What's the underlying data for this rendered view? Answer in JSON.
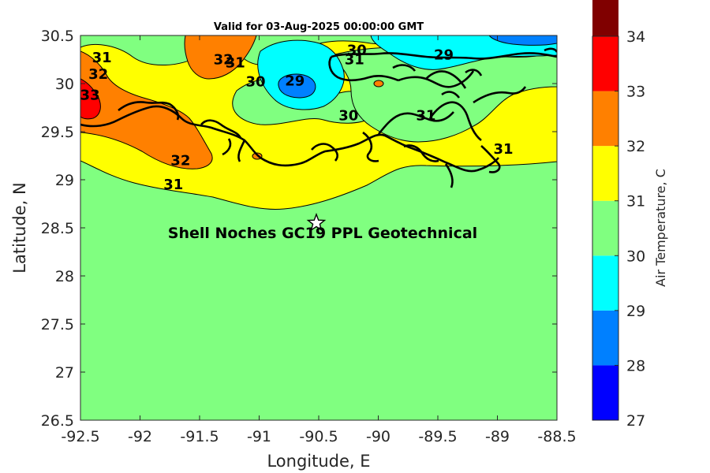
{
  "map": {
    "title": "Valid for 03-Aug-2025 00:00:00 GMT",
    "xlabel": "Longitude, E",
    "ylabel": "Latitude, N",
    "xlim": [
      -92.5,
      -88.5
    ],
    "ylim": [
      26.5,
      30.5
    ],
    "xticks": [
      "-92.5",
      "-92",
      "-91.5",
      "-91",
      "-90.5",
      "-90",
      "-89.5",
      "-89",
      "-88.5"
    ],
    "yticks": [
      "30.5",
      "30",
      "29.5",
      "29",
      "28.5",
      "28",
      "27.5",
      "27",
      "26.5"
    ],
    "site": {
      "lon": -90.52,
      "lat": 28.55,
      "label": "Shell Noches   GC19 PPL  Geotechnical",
      "marker": "star-icon"
    },
    "contour_labels": [
      {
        "text": "31",
        "lon": -92.32,
        "lat": 30.22
      },
      {
        "text": "32",
        "lon": -92.35,
        "lat": 30.05
      },
      {
        "text": "33",
        "lon": -92.42,
        "lat": 29.83
      },
      {
        "text": "32",
        "lon": -91.3,
        "lat": 30.2
      },
      {
        "text": "31",
        "lon": -91.2,
        "lat": 30.17
      },
      {
        "text": "30",
        "lon": -91.03,
        "lat": 29.97
      },
      {
        "text": "29",
        "lon": -90.7,
        "lat": 29.98
      },
      {
        "text": "30",
        "lon": -90.18,
        "lat": 30.3
      },
      {
        "text": "31",
        "lon": -90.2,
        "lat": 30.2
      },
      {
        "text": "29",
        "lon": -89.45,
        "lat": 30.25
      },
      {
        "text": "30",
        "lon": -90.25,
        "lat": 29.62
      },
      {
        "text": "31",
        "lon": -89.6,
        "lat": 29.62
      },
      {
        "text": "31",
        "lon": -88.95,
        "lat": 29.27
      },
      {
        "text": "32",
        "lon": -91.66,
        "lat": 29.15
      },
      {
        "text": "31",
        "lon": -91.72,
        "lat": 28.9
      }
    ]
  },
  "colorbar": {
    "label": "Air Temperature, C",
    "ticks": [
      "34",
      "33",
      "32",
      "31",
      "30",
      "29",
      "28",
      "27"
    ],
    "levels": [
      27,
      28,
      29,
      30,
      31,
      32,
      33,
      34
    ],
    "colors": [
      "#0000ff",
      "#0080ff",
      "#00ffff",
      "#80ff80",
      "#ffff00",
      "#ff8000",
      "#ff0000",
      "#800000"
    ]
  },
  "colors": {
    "frame": "#262626",
    "coast": "#000000",
    "contour": "#000000"
  }
}
